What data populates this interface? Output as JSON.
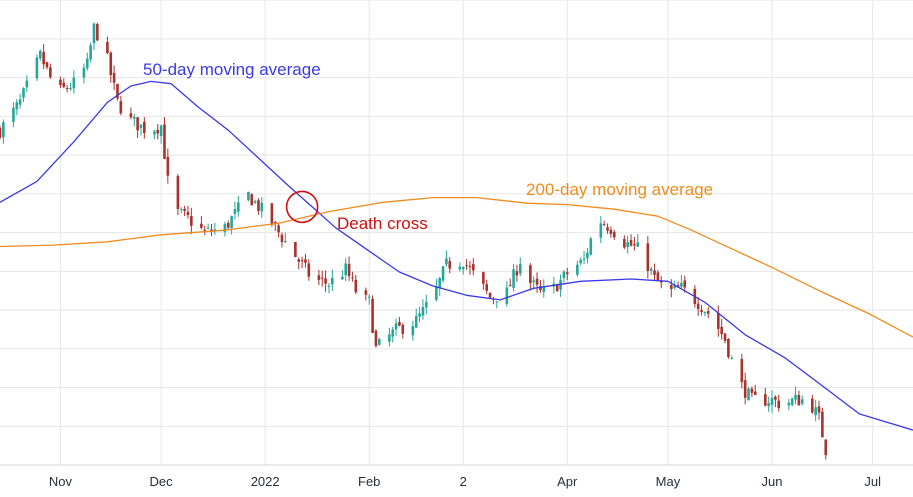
{
  "chart_data": {
    "type": "candlestick",
    "title": "",
    "xlabel": "",
    "ylabel": "",
    "x_range": [
      "2021-10-14",
      "2022-07-13"
    ],
    "y_range": [
      0,
      100
    ],
    "y_note": "no price axis is printed; values are relative levels (0 = bottom, 100 = top of plot)",
    "grid": true,
    "x_ticks": [
      {
        "date": "2021-11-01",
        "label": "Nov"
      },
      {
        "date": "2021-12-01",
        "label": "Dec"
      },
      {
        "date": "2022-01-01",
        "label": "2022"
      },
      {
        "date": "2022-02-01",
        "label": "Feb"
      },
      {
        "date": "2022-03-01",
        "label": "2"
      },
      {
        "date": "2022-04-01",
        "label": "Apr"
      },
      {
        "date": "2022-05-01",
        "label": "May"
      },
      {
        "date": "2022-06-01",
        "label": "Jun"
      },
      {
        "date": "2022-07-01",
        "label": "Jul"
      }
    ],
    "colors": {
      "up": "#26a69a",
      "down": "#a8322d",
      "ma50": "#3a3ae8",
      "ma200": "#f08c1e",
      "annotation": "#cc1010",
      "grid": "#e6e6e6"
    },
    "series": [
      {
        "name": "50-day moving average",
        "color": "#3a3ae8",
        "points": [
          [
            "2021-10-14",
            56.5
          ],
          [
            "2021-10-25",
            61
          ],
          [
            "2021-11-05",
            69.5
          ],
          [
            "2021-11-15",
            78
          ],
          [
            "2021-11-22",
            81.5
          ],
          [
            "2021-11-28",
            82.5
          ],
          [
            "2021-12-04",
            82
          ],
          [
            "2021-12-12",
            77
          ],
          [
            "2021-12-21",
            72
          ],
          [
            "2021-12-30",
            66
          ],
          [
            "2022-01-08",
            60
          ],
          [
            "2022-01-15",
            55.5
          ],
          [
            "2022-01-22",
            51
          ],
          [
            "2022-01-31",
            46.5
          ],
          [
            "2022-02-10",
            41.5
          ],
          [
            "2022-02-20",
            38.5
          ],
          [
            "2022-03-02",
            36.5
          ],
          [
            "2022-03-12",
            35.5
          ],
          [
            "2022-03-22",
            38
          ],
          [
            "2022-04-05",
            39.5
          ],
          [
            "2022-04-20",
            40
          ],
          [
            "2022-05-01",
            39.5
          ],
          [
            "2022-05-12",
            35
          ],
          [
            "2022-05-24",
            28
          ],
          [
            "2022-06-05",
            23
          ],
          [
            "2022-06-16",
            17
          ],
          [
            "2022-06-27",
            11
          ],
          [
            "2022-07-13",
            7.5
          ]
        ]
      },
      {
        "name": "200-day moving average",
        "color": "#f08c1e",
        "points": [
          [
            "2021-10-14",
            47
          ],
          [
            "2021-10-30",
            47.3
          ],
          [
            "2021-11-15",
            48
          ],
          [
            "2021-12-01",
            49.5
          ],
          [
            "2021-12-20",
            50.5
          ],
          [
            "2022-01-05",
            52
          ],
          [
            "2022-01-20",
            54.5
          ],
          [
            "2022-02-05",
            56.5
          ],
          [
            "2022-02-20",
            57.5
          ],
          [
            "2022-03-05",
            57.5
          ],
          [
            "2022-03-20",
            56.3
          ],
          [
            "2022-04-01",
            56
          ],
          [
            "2022-04-15",
            55
          ],
          [
            "2022-04-28",
            53.5
          ],
          [
            "2022-05-08",
            50.5
          ],
          [
            "2022-05-20",
            46.5
          ],
          [
            "2022-06-01",
            42.5
          ],
          [
            "2022-06-15",
            37.5
          ],
          [
            "2022-06-30",
            32.5
          ],
          [
            "2022-07-13",
            27.5
          ]
        ]
      },
      {
        "name": "price",
        "type": "candlestick",
        "close_path": [
          [
            "2021-10-14",
            72
          ],
          [
            "2021-10-20",
            78
          ],
          [
            "2021-10-26",
            88
          ],
          [
            "2021-10-31",
            80
          ],
          [
            "2021-11-05",
            82
          ],
          [
            "2021-11-09",
            86
          ],
          [
            "2021-11-11",
            94
          ],
          [
            "2021-11-14",
            90
          ],
          [
            "2021-11-18",
            78
          ],
          [
            "2021-11-22",
            74
          ],
          [
            "2021-11-27",
            72
          ],
          [
            "2021-12-01",
            73
          ],
          [
            "2021-12-04",
            55
          ],
          [
            "2021-12-09",
            53
          ],
          [
            "2021-12-14",
            50
          ],
          [
            "2021-12-20",
            51
          ],
          [
            "2021-12-27",
            58
          ],
          [
            "2022-01-01",
            54
          ],
          [
            "2022-01-06",
            49
          ],
          [
            "2022-01-10",
            45
          ],
          [
            "2022-01-15",
            40
          ],
          [
            "2022-01-20",
            39
          ],
          [
            "2022-01-25",
            42
          ],
          [
            "2022-01-29",
            36
          ],
          [
            "2022-02-01",
            35
          ],
          [
            "2022-02-03",
            25
          ],
          [
            "2022-02-09",
            29
          ],
          [
            "2022-02-15",
            31
          ],
          [
            "2022-02-20",
            36
          ],
          [
            "2022-02-24",
            43
          ],
          [
            "2022-03-01",
            44
          ],
          [
            "2022-03-05",
            40
          ],
          [
            "2022-03-09",
            36
          ],
          [
            "2022-03-14",
            37
          ],
          [
            "2022-03-18",
            44
          ],
          [
            "2022-03-20",
            40
          ],
          [
            "2022-03-24",
            37
          ],
          [
            "2022-03-28",
            38
          ],
          [
            "2022-04-02",
            42
          ],
          [
            "2022-04-06",
            44
          ],
          [
            "2022-04-10",
            53
          ],
          [
            "2022-04-14",
            51
          ],
          [
            "2022-04-18",
            48
          ],
          [
            "2022-04-23",
            46
          ],
          [
            "2022-04-27",
            40
          ],
          [
            "2022-05-01",
            37
          ],
          [
            "2022-05-05",
            38
          ],
          [
            "2022-05-10",
            35
          ],
          [
            "2022-05-14",
            32
          ],
          [
            "2022-05-18",
            27
          ],
          [
            "2022-05-22",
            18
          ],
          [
            "2022-05-26",
            14
          ],
          [
            "2022-06-01",
            14
          ],
          [
            "2022-06-04",
            13
          ],
          [
            "2022-06-08",
            14
          ],
          [
            "2022-06-12",
            14
          ],
          [
            "2022-06-15",
            10
          ],
          [
            "2022-06-18",
            0
          ]
        ]
      }
    ],
    "annotations": [
      {
        "text": "50-day moving average",
        "color": "#3a3ae8"
      },
      {
        "text": "200-day moving average",
        "color": "#f08c1e"
      },
      {
        "text": "Death cross",
        "color": "#cc1010",
        "marker": "circle",
        "at": [
          "2022-01-12",
          55.5
        ]
      }
    ]
  }
}
